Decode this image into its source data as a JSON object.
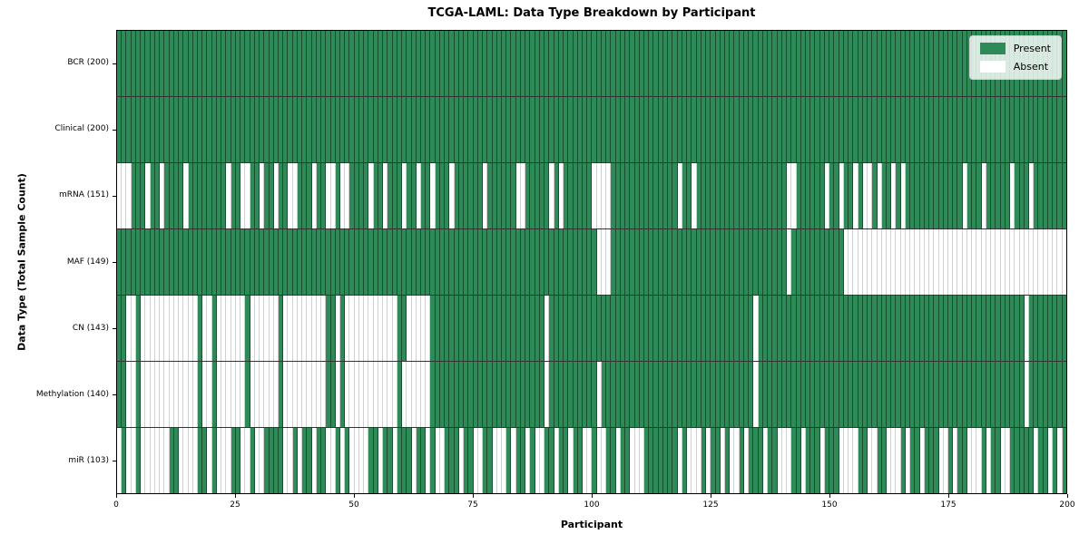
{
  "colors": {
    "present": "#2e8b57",
    "absent": "#ffffff",
    "grid_line": "#000000"
  },
  "chart_data": {
    "type": "heatmap",
    "title": "TCGA-LAML: Data Type Breakdown by Participant",
    "xlabel": "Participant",
    "ylabel": "Data Type (Total Sample Count)",
    "x_range": [
      0,
      200
    ],
    "x_ticks": [
      0,
      25,
      50,
      75,
      100,
      125,
      150,
      175,
      200
    ],
    "n_participants": 200,
    "cell_encoding": {
      "1": "Present",
      "0": "Absent"
    },
    "legend": [
      {
        "label": "Present",
        "color": "#2e8b57"
      },
      {
        "label": "Absent",
        "color": "#ffffff"
      }
    ],
    "rows": [
      {
        "label": "BCR (200)",
        "data_type": "BCR",
        "present_count": 200,
        "pattern": "11111111111111111111111111111111111111111111111111111111111111111111111111111111111111111111111111111111111111111111111111111111111111111111111111111111111111111111111111111111111111111111111111111111"
      },
      {
        "label": "Clinical (200)",
        "data_type": "Clinical",
        "present_count": 200,
        "pattern": "11111111111111111111111111111111111111111111111111111111111111111111111111111111111111111111111111111111111111111111111111111111111111111111111111111111111111111111111111111111111111111111111111111111"
      },
      {
        "label": "mRNA (151)",
        "data_type": "mRNA",
        "present_count": 151,
        "pattern": "00011101101111011111111011001101101100111011001001111011011101101101110111111011111100111110101111110000111111111111110110111111111111111111100111111011011010010110101111111111110111011111011101111111"
      },
      {
        "label": "MAF (149)",
        "data_type": "MAF",
        "present_count": 149,
        "pattern": "11111111111111111111111111111111111111111111111111111111111111111111111111111111111111111111111111111000111111111111111111111111111111111111101111111111100000000000000000000000000000000000000000000000"
      },
      {
        "label": "CN (143)",
        "data_type": "CN",
        "present_count": 143,
        "pattern": "11001000000000000100100000010000001000000000110100000000000110000011111111111111111111111101111111111111111111111111111111111111111111011111111111111111111111111111111111111111111111111111111011111111"
      },
      {
        "label": "Methylation (140)",
        "data_type": "Methylation",
        "present_count": 140,
        "pattern": "11001000000000000100100000010000001000000000110100000000000100000011111111111111111111111101111111111011111111111111111111111111111111011111111111111111111111111111111111111111111111111111111011111111"
      },
      {
        "label": "miR (103)",
        "data_type": "miR",
        "present_count": 103,
        "pattern": "01001000000110000110100011001001111001011011001010000110110111011010011101100110001011010011011011001001101100011111110100010110100101110110001101110111000011001100010110111001011000101100111110110101"
      }
    ]
  }
}
